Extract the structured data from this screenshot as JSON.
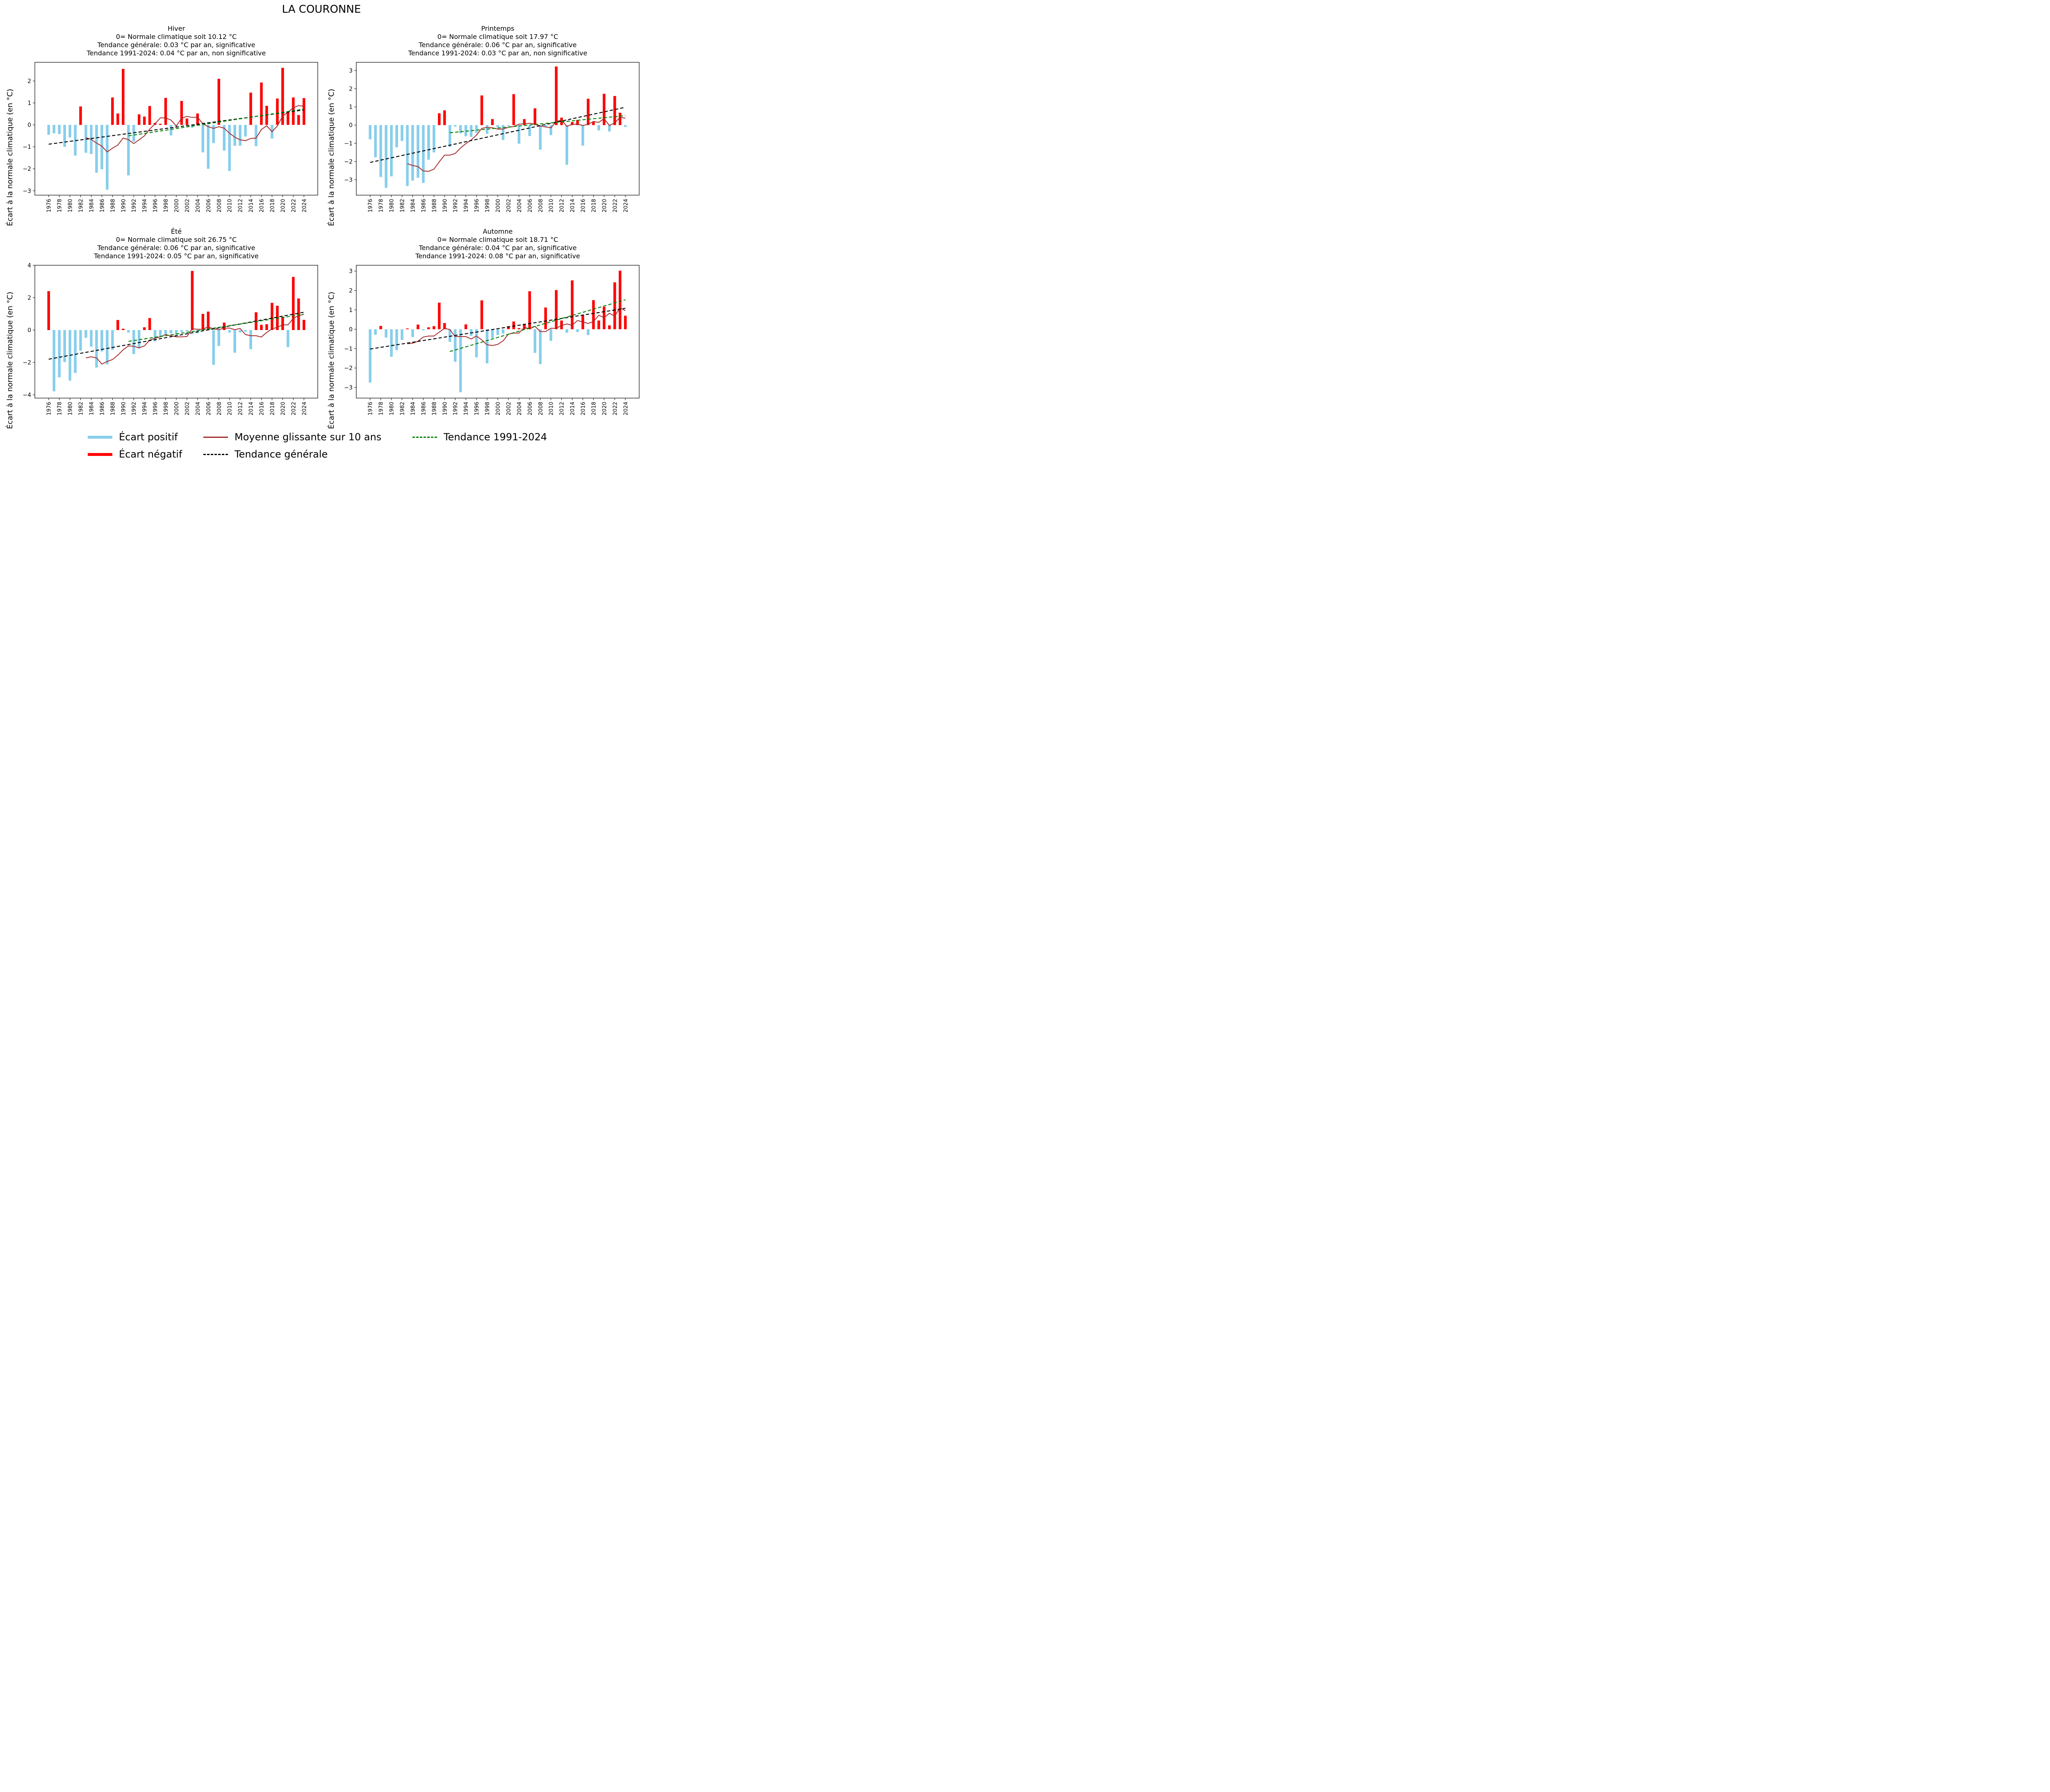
{
  "title": "LA COURONNE",
  "ylabel": "Écart à la normale climatique (en °C)",
  "colors": {
    "positive": "#87ceeb",
    "negative": "#ff0000",
    "rolling": "#a52a2a",
    "trend_all": "#000000",
    "trend_recent": "#008000"
  },
  "legend": {
    "positive": "Écart positif",
    "negative": "Écart négatif",
    "rolling": "Moyenne glissante sur 10 ans",
    "trend_all": "Tendance générale",
    "trend_recent": "Tendance 1991-2024"
  },
  "chart_data": [
    {
      "type": "bar",
      "season": "Hiver",
      "title_lines": [
        "Hiver",
        "0= Normale climatique soit 10.12 °C",
        "Tendance générale: 0.03  °C par an, significative",
        "Tendance 1991-2024: 0.04 °C par an, non significative"
      ],
      "ylim": [
        -3.2,
        2.85
      ],
      "yticks": [
        -3,
        -2,
        -1,
        0,
        1,
        2
      ],
      "x": [
        1976,
        1977,
        1978,
        1979,
        1980,
        1981,
        1982,
        1983,
        1984,
        1985,
        1986,
        1987,
        1988,
        1989,
        1990,
        1991,
        1992,
        1993,
        1994,
        1995,
        1996,
        1997,
        1998,
        1999,
        2000,
        2001,
        2002,
        2003,
        2004,
        2005,
        2006,
        2007,
        2008,
        2009,
        2010,
        2011,
        2012,
        2013,
        2014,
        2015,
        2016,
        2017,
        2018,
        2019,
        2020,
        2021,
        2022,
        2023,
        2024
      ],
      "values": [
        -0.45,
        -0.38,
        -0.42,
        -1.0,
        -0.57,
        -1.4,
        0.84,
        -1.27,
        -1.33,
        -2.18,
        -2.02,
        -2.95,
        1.25,
        0.52,
        2.55,
        -2.3,
        -0.76,
        0.48,
        0.38,
        0.86,
        0.09,
        0.05,
        1.23,
        -0.48,
        -0.1,
        1.09,
        0.29,
        -0.13,
        0.52,
        -1.25,
        -2.0,
        -0.83,
        2.1,
        -1.17,
        -2.1,
        -0.95,
        -0.95,
        -0.53,
        1.47,
        -0.97,
        1.93,
        0.87,
        -0.62,
        1.2,
        2.6,
        0.6,
        1.25,
        0.45,
        1.22
      ],
      "rolling_x": [
        1983,
        1984,
        1985,
        1986,
        1987,
        1988,
        1989,
        1990,
        1991,
        1992,
        1993,
        1994,
        1995,
        1996,
        1997,
        1998,
        1999,
        2000,
        2001,
        2002,
        2003,
        2004,
        2005,
        2006,
        2007,
        2008,
        2009,
        2010,
        2011,
        2012,
        2013,
        2014,
        2015,
        2016,
        2017,
        2018,
        2019,
        2020,
        2021,
        2022,
        2023,
        2024
      ],
      "rolling": [
        -0.58,
        -0.66,
        -0.83,
        -0.97,
        -1.23,
        -1.06,
        -0.92,
        -0.6,
        -0.67,
        -0.85,
        -0.68,
        -0.5,
        -0.19,
        0.05,
        0.32,
        0.32,
        0.22,
        -0.05,
        0.3,
        0.39,
        0.34,
        0.35,
        0.05,
        -0.08,
        -0.16,
        -0.08,
        -0.15,
        -0.38,
        -0.56,
        -0.68,
        -0.72,
        -0.62,
        -0.6,
        -0.21,
        -0.04,
        -0.31,
        -0.05,
        0.4,
        0.58,
        0.78,
        0.88,
        0.85
      ],
      "trend_all": {
        "x": [
          1976,
          2024
        ],
        "y": [
          -0.88,
          0.68
        ]
      },
      "trend_recent": {
        "x": [
          1991,
          2024
        ],
        "y": [
          -0.5,
          0.72
        ]
      }
    },
    {
      "type": "bar",
      "season": "Printemps",
      "title_lines": [
        "Printemps",
        "0= Normale climatique soit 17.97 °C",
        "Tendance générale: 0.06  °C par an, significative",
        "Tendance 1991-2024: 0.03 °C par an, non significative"
      ],
      "ylim": [
        -3.85,
        3.45
      ],
      "yticks": [
        -3,
        -2,
        -1,
        0,
        1,
        2,
        3
      ],
      "x": [
        1976,
        1977,
        1978,
        1979,
        1980,
        1981,
        1982,
        1983,
        1984,
        1985,
        1986,
        1987,
        1988,
        1989,
        1990,
        1991,
        1992,
        1993,
        1994,
        1995,
        1996,
        1997,
        1998,
        1999,
        2000,
        2001,
        2002,
        2003,
        2004,
        2005,
        2006,
        2007,
        2008,
        2009,
        2010,
        2011,
        2012,
        2013,
        2014,
        2015,
        2016,
        2017,
        2018,
        2019,
        2020,
        2021,
        2022,
        2023,
        2024
      ],
      "values": [
        -0.78,
        -1.77,
        -2.85,
        -3.45,
        -2.82,
        -1.22,
        -0.87,
        -3.35,
        -3.05,
        -2.9,
        -3.18,
        -1.9,
        -1.5,
        0.65,
        0.81,
        -1.2,
        -0.08,
        -0.45,
        -0.61,
        -0.65,
        -0.42,
        1.63,
        -0.48,
        0.33,
        -0.13,
        -0.82,
        -0.05,
        1.7,
        -1.02,
        0.33,
        -0.6,
        0.92,
        -1.35,
        -0.12,
        -0.55,
        3.22,
        0.41,
        -2.18,
        0.17,
        0.28,
        -1.13,
        1.45,
        0.19,
        -0.29,
        1.72,
        -0.35,
        1.6,
        0.68,
        -0.1
      ],
      "rolling_x": [
        1983,
        1984,
        1985,
        1986,
        1987,
        1988,
        1989,
        1990,
        1991,
        1992,
        1993,
        1994,
        1995,
        1996,
        1997,
        1998,
        1999,
        2000,
        2001,
        2002,
        2003,
        2004,
        2005,
        2006,
        2007,
        2008,
        2009,
        2010,
        2011,
        2012,
        2013,
        2014,
        2015,
        2016,
        2017,
        2018,
        2019,
        2020,
        2021,
        2022,
        2023,
        2024
      ],
      "rolling": [
        -2.12,
        -2.22,
        -2.28,
        -2.52,
        -2.54,
        -2.42,
        -2.02,
        -1.65,
        -1.65,
        -1.56,
        -1.26,
        -1.02,
        -0.82,
        -0.55,
        -0.18,
        -0.12,
        -0.15,
        -0.22,
        -0.22,
        -0.12,
        -0.08,
        0.05,
        0.07,
        0.1,
        0.05,
        -0.05,
        -0.1,
        -0.15,
        0.2,
        0.27,
        -0.07,
        0.04,
        0.05,
        -0.02,
        0.04,
        0.2,
        0.15,
        0.35,
        -0.02,
        0.12,
        0.43,
        0.38
      ],
      "trend_all": {
        "x": [
          1976,
          2024
        ],
        "y": [
          -2.05,
          0.98
        ]
      },
      "trend_recent": {
        "x": [
          1991,
          2024
        ],
        "y": [
          -0.42,
          0.52
        ]
      }
    },
    {
      "type": "bar",
      "season": "Été",
      "title_lines": [
        "Été",
        "0= Normale climatique soit 26.75 °C",
        "Tendance générale: 0.06  °C par an, significative",
        "Tendance 1991-2024: 0.05 °C par an, significative"
      ],
      "ylim": [
        -4.2,
        4.0
      ],
      "yticks": [
        -4,
        -2,
        0,
        2,
        4
      ],
      "x": [
        1976,
        1977,
        1978,
        1979,
        1980,
        1981,
        1982,
        1983,
        1984,
        1985,
        1986,
        1987,
        1988,
        1989,
        1990,
        1991,
        1992,
        1993,
        1994,
        1995,
        1996,
        1997,
        1998,
        1999,
        2000,
        2001,
        2002,
        2003,
        2004,
        2005,
        2006,
        2007,
        2008,
        2009,
        2010,
        2011,
        2012,
        2013,
        2014,
        2015,
        2016,
        2017,
        2018,
        2019,
        2020,
        2021,
        2022,
        2023,
        2024
      ],
      "values": [
        2.4,
        -3.78,
        -2.92,
        -1.98,
        -3.12,
        -2.65,
        -1.27,
        -0.48,
        -1.02,
        -2.32,
        -1.32,
        -2.12,
        -1.22,
        0.62,
        0.08,
        -0.15,
        -1.48,
        -1.13,
        0.17,
        0.74,
        -0.7,
        -0.42,
        -0.3,
        -0.2,
        -0.3,
        -0.12,
        -0.08,
        3.65,
        -0.2,
        1.0,
        1.14,
        -2.15,
        -0.98,
        0.46,
        -0.15,
        -1.4,
        -0.15,
        -0.1,
        -1.18,
        1.1,
        0.32,
        0.36,
        1.68,
        1.5,
        0.82,
        -1.05,
        3.28,
        1.95,
        0.63
      ],
      "rolling_x": [
        1983,
        1984,
        1985,
        1986,
        1987,
        1988,
        1989,
        1990,
        1991,
        1992,
        1993,
        1994,
        1995,
        1996,
        1997,
        1998,
        1999,
        2000,
        2001,
        2002,
        2003,
        2004,
        2005,
        2006,
        2007,
        2008,
        2009,
        2010,
        2011,
        2012,
        2013,
        2014,
        2015,
        2016,
        2017,
        2018,
        2019,
        2020,
        2021,
        2022,
        2023,
        2024
      ],
      "rolling": [
        -1.72,
        -1.65,
        -1.72,
        -2.1,
        -1.94,
        -1.82,
        -1.55,
        -1.22,
        -0.98,
        -1.0,
        -1.1,
        -0.98,
        -0.62,
        -0.5,
        -0.42,
        -0.28,
        -0.35,
        -0.42,
        -0.42,
        -0.4,
        0.08,
        0.05,
        0.05,
        0.2,
        0.07,
        0.02,
        0.12,
        0.12,
        0.02,
        0.1,
        -0.28,
        -0.35,
        -0.35,
        -0.43,
        -0.15,
        0.07,
        0.17,
        0.32,
        0.32,
        0.72,
        0.88,
        0.98
      ],
      "trend_all": {
        "x": [
          1976,
          2024
        ],
        "y": [
          -1.8,
          1.1
        ]
      },
      "trend_recent": {
        "x": [
          1991,
          2024
        ],
        "y": [
          -0.7,
          0.98
        ]
      }
    },
    {
      "type": "bar",
      "season": "Automne",
      "title_lines": [
        "Automne",
        "0= Normale climatique soit 18.71 °C",
        "Tendance générale: 0.04  °C par an, significative",
        "Tendance 1991-2024: 0.08 °C par an, significative"
      ],
      "ylim": [
        -3.55,
        3.3
      ],
      "yticks": [
        -3,
        -2,
        -1,
        0,
        1,
        2,
        3
      ],
      "x": [
        1976,
        1977,
        1978,
        1979,
        1980,
        1981,
        1982,
        1983,
        1984,
        1985,
        1986,
        1987,
        1988,
        1989,
        1990,
        1991,
        1992,
        1993,
        1994,
        1995,
        1996,
        1997,
        1998,
        1999,
        2000,
        2001,
        2002,
        2003,
        2004,
        2005,
        2006,
        2007,
        2008,
        2009,
        2010,
        2011,
        2012,
        2013,
        2014,
        2015,
        2016,
        2017,
        2018,
        2019,
        2020,
        2021,
        2022,
        2023,
        2024
      ],
      "values": [
        -2.75,
        -0.28,
        0.17,
        -0.43,
        -1.42,
        -1.08,
        -0.55,
        0.04,
        -0.4,
        0.24,
        -0.06,
        0.1,
        0.16,
        1.37,
        0.32,
        -0.65,
        -1.68,
        -3.25,
        0.25,
        -0.34,
        -1.45,
        1.49,
        -1.76,
        -0.45,
        -0.3,
        -0.22,
        0.16,
        0.4,
        0.06,
        0.28,
        1.96,
        -1.22,
        -1.8,
        1.12,
        -0.6,
        2.02,
        0.45,
        -0.18,
        2.52,
        -0.14,
        0.72,
        -0.3,
        1.5,
        0.45,
        1.16,
        0.2,
        2.42,
        3.02,
        0.7
      ],
      "rolling_x": [
        1983,
        1984,
        1985,
        1986,
        1987,
        1988,
        1989,
        1990,
        1991,
        1992,
        1993,
        1994,
        1995,
        1996,
        1997,
        1998,
        1999,
        2000,
        2001,
        2002,
        2003,
        2004,
        2005,
        2006,
        2007,
        2008,
        2009,
        2010,
        2011,
        2012,
        2013,
        2014,
        2015,
        2016,
        2017,
        2018,
        2019,
        2020,
        2021,
        2022,
        2023,
        2024
      ],
      "rolling": [
        -0.75,
        -0.72,
        -0.62,
        -0.4,
        -0.35,
        -0.35,
        -0.15,
        0.05,
        -0.02,
        -0.38,
        -0.38,
        -0.38,
        -0.5,
        -0.35,
        -0.55,
        -0.8,
        -0.84,
        -0.78,
        -0.6,
        -0.25,
        -0.2,
        -0.2,
        0.1,
        0.02,
        0.15,
        -0.12,
        -0.12,
        0.05,
        0.05,
        0.2,
        0.27,
        0.2,
        0.45,
        0.38,
        0.3,
        0.4,
        0.72,
        0.6,
        0.82,
        0.68,
        1.1,
        0.96
      ],
      "trend_all": {
        "x": [
          1976,
          2024
        ],
        "y": [
          -1.02,
          1.08
        ]
      },
      "trend_recent": {
        "x": [
          1991,
          2024
        ],
        "y": [
          -1.15,
          1.52
        ]
      }
    }
  ]
}
